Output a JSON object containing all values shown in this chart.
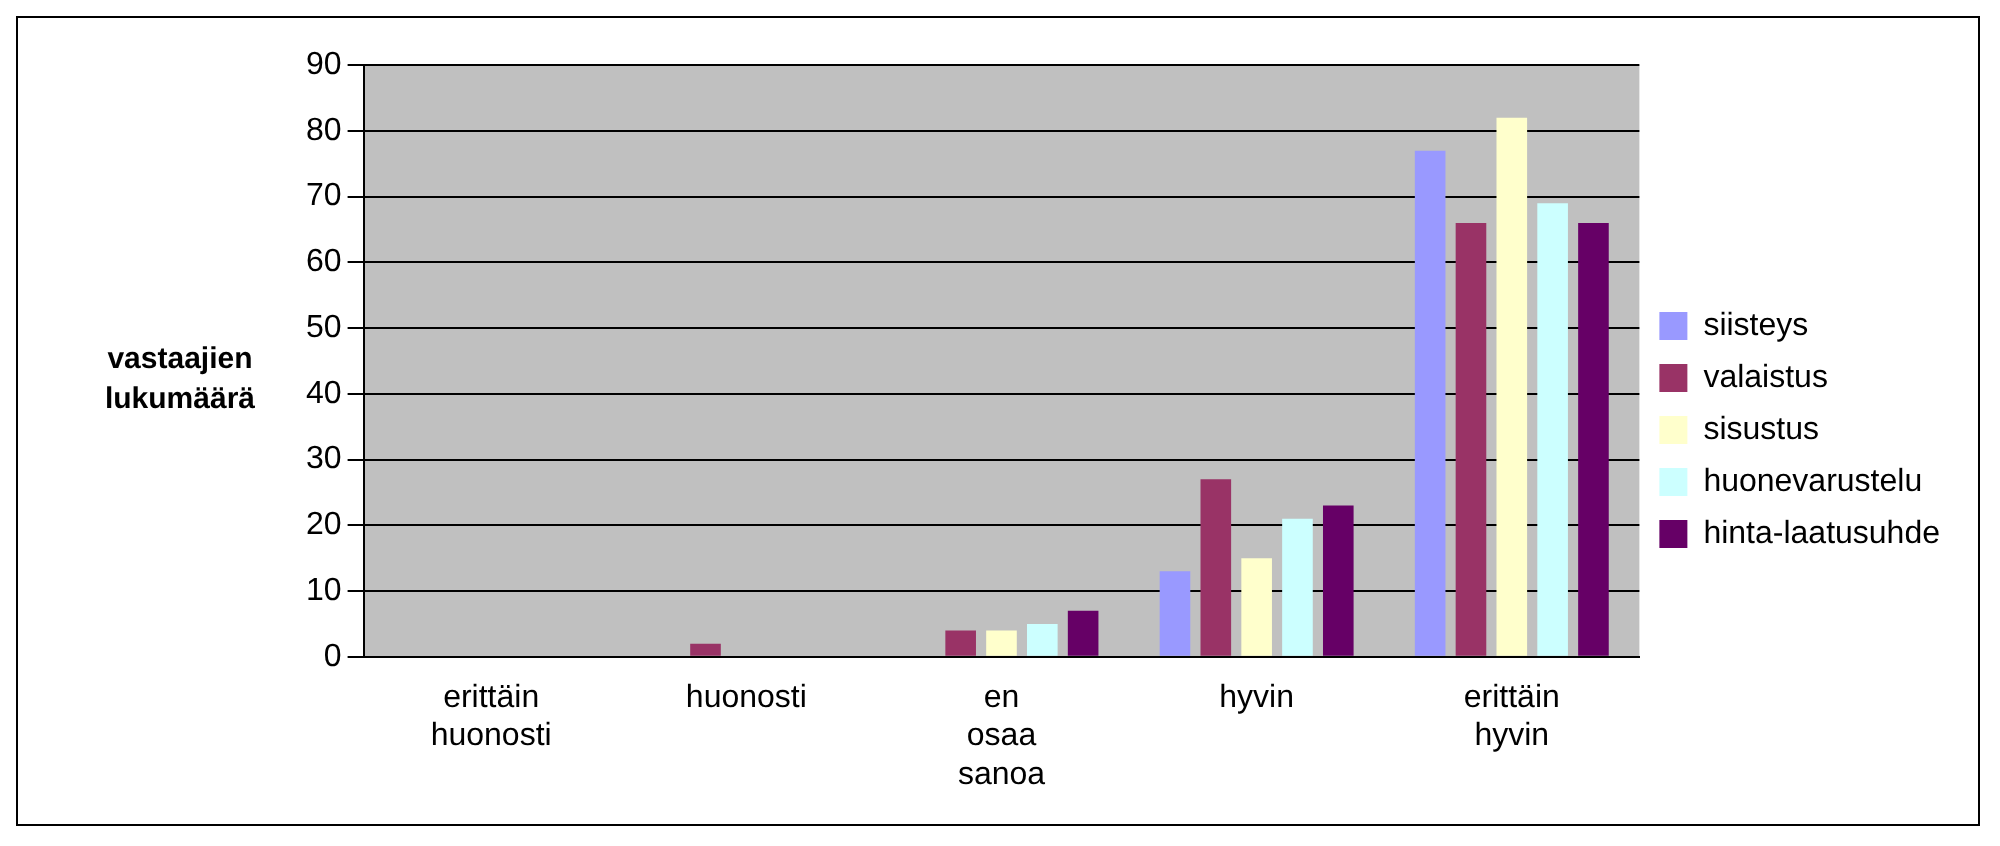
{
  "chart_data": {
    "type": "bar",
    "ylabel": "vastaajien lukumäärä",
    "categories": [
      "erittäin huonosti",
      "huonosti",
      "en osaa sanoa",
      "hyvin",
      "erittäin hyvin"
    ],
    "series": [
      {
        "name": "siisteys",
        "color": "#9999ff",
        "values": [
          0,
          0,
          0,
          13,
          77
        ]
      },
      {
        "name": "valaistus",
        "color": "#993366",
        "values": [
          0,
          2,
          4,
          27,
          66
        ]
      },
      {
        "name": "sisustus",
        "color": "#ffffcc",
        "values": [
          0,
          0,
          4,
          15,
          82
        ]
      },
      {
        "name": "huonevarustelu",
        "color": "#ccffff",
        "values": [
          0,
          0,
          5,
          21,
          69
        ]
      },
      {
        "name": "hinta-laatusuhde",
        "color": "#660066",
        "values": [
          0,
          0,
          7,
          23,
          66
        ]
      }
    ],
    "ylim": [
      0,
      90
    ],
    "yticks": [
      0,
      10,
      20,
      30,
      40,
      50,
      60,
      70,
      80,
      90
    ],
    "grid": "y",
    "legend": "right"
  }
}
